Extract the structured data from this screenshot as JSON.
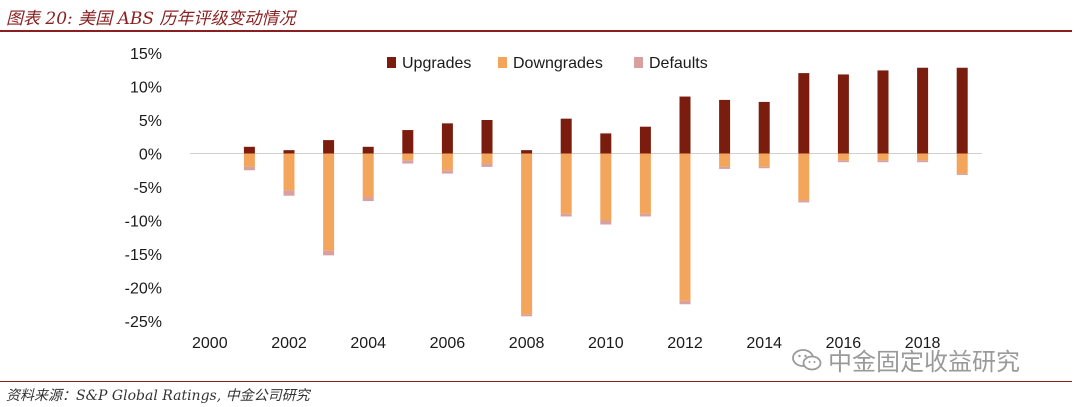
{
  "figure": {
    "title": "图表 20:  美国 ABS 历年评级变动情况",
    "source": "资料来源：S&P Global Ratings,  中金公司研究",
    "watermark": "中金固定收益研究",
    "watermark_icon": "wechat-icon"
  },
  "colors": {
    "upgrades": "#7a1d0e",
    "downgrades": "#f4a55c",
    "defaults": "#d9a0a0",
    "accent": "#8b1f1f"
  },
  "chart_data": {
    "type": "bar",
    "title": "",
    "xlabel": "",
    "ylabel": "",
    "categories": [
      "2000",
      "2001",
      "2002",
      "2003",
      "2004",
      "2005",
      "2006",
      "2007",
      "2008",
      "2009",
      "2010",
      "2011",
      "2012",
      "2013",
      "2014",
      "2015",
      "2016",
      "2017",
      "2018",
      "2019"
    ],
    "x_tick_labels": [
      "2000",
      "2002",
      "2004",
      "2006",
      "2008",
      "2010",
      "2012",
      "2014",
      "2016",
      "2018"
    ],
    "y_tick_labels": [
      "15%",
      "10%",
      "5%",
      "0%",
      "-5%",
      "-10%",
      "-15%",
      "-20%",
      "-25%"
    ],
    "ylim": [
      -25,
      15
    ],
    "y_unit": "%",
    "grid": false,
    "legend_position": "top",
    "series": [
      {
        "name": "Upgrades",
        "values": [
          0,
          1.0,
          0.5,
          2.0,
          1.0,
          3.5,
          4.5,
          5.0,
          0.5,
          5.2,
          3.0,
          4.0,
          8.5,
          8.0,
          7.7,
          12.0,
          11.8,
          12.4,
          12.8,
          12.8
        ]
      },
      {
        "name": "Downgrades",
        "values": [
          0,
          -2.0,
          -5.5,
          -14.5,
          -6.5,
          -1.0,
          -2.5,
          -1.5,
          -24.0,
          -9.0,
          -10.0,
          -9.0,
          -22.0,
          -2.0,
          -2.0,
          -7.0,
          -1.0,
          -1.0,
          -1.0,
          -3.0
        ]
      },
      {
        "name": "Defaults",
        "values": [
          0,
          -0.5,
          -0.8,
          -0.7,
          -0.6,
          -0.5,
          -0.5,
          -0.5,
          -0.3,
          -0.4,
          -0.6,
          -0.4,
          -0.5,
          -0.3,
          -0.2,
          -0.3,
          -0.3,
          -0.3,
          -0.3,
          -0.2
        ]
      }
    ]
  }
}
